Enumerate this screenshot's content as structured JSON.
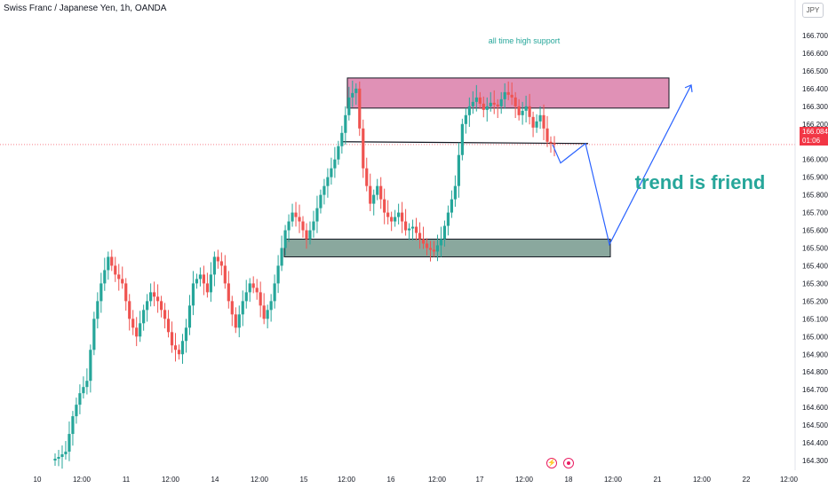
{
  "header": {
    "title": "Swiss Franc / Japanese Yen, 1h, OANDA",
    "currency": "JPY"
  },
  "price_badge": {
    "price": "166.084",
    "countdown": "01:06"
  },
  "annotations": {
    "top_zone_label": "all time high support",
    "trend_label": "trend is friend"
  },
  "colors": {
    "up": "#26a69a",
    "down": "#ef5350",
    "resistance_zone": "#e091b6",
    "support_zone": "#8aa89e",
    "projection": "#2962ff",
    "trend_text": "#26a69a",
    "price_line": "#f23645",
    "event_icon": "#e91e63"
  },
  "icons": [
    "lightning-event-icon",
    "record-event-icon"
  ],
  "chart_data": {
    "type": "candlestick",
    "title": "Swiss Franc / Japanese Yen, 1h, OANDA",
    "y_axis": {
      "unit": "JPY",
      "range": [
        164.25,
        166.75
      ],
      "ticks": [
        "166.700",
        "166.600",
        "166.500",
        "166.400",
        "166.300",
        "166.200",
        "166.000",
        "165.900",
        "165.800",
        "165.700",
        "165.600",
        "165.500",
        "165.400",
        "165.300",
        "165.200",
        "165.100",
        "165.000",
        "164.900",
        "164.800",
        "164.700",
        "164.600",
        "164.500",
        "164.400",
        "164.300"
      ]
    },
    "x_axis": {
      "ticks": [
        "10",
        "12:00",
        "11",
        "12:00",
        "14",
        "12:00",
        "15",
        "12:00",
        "16",
        "12:00",
        "17",
        "12:00",
        "18",
        "12:00",
        "21",
        "12:00",
        "22",
        "12:00"
      ]
    },
    "last_price": 166.084,
    "zones": [
      {
        "name": "resistance",
        "low": 166.29,
        "high": 166.46
      },
      {
        "name": "support",
        "low": 165.45,
        "high": 165.55
      }
    ],
    "horizontal_line": 166.1,
    "projection_path_prices": [
      166.084,
      165.98,
      166.09,
      165.52,
      166.42
    ],
    "ohlc_path": [
      164.32,
      164.35,
      164.55,
      164.68,
      164.75,
      165.1,
      165.3,
      165.45,
      165.35,
      165.3,
      165.1,
      165.0,
      165.15,
      165.25,
      165.2,
      165.1,
      164.95,
      164.9,
      165.05,
      165.3,
      165.35,
      165.25,
      165.45,
      165.4,
      165.2,
      165.05,
      165.2,
      165.3,
      165.25,
      165.1,
      165.2,
      165.4,
      165.6,
      165.7,
      165.65,
      165.55,
      165.65,
      165.8,
      165.9,
      166.0,
      166.15,
      166.35,
      166.4,
      165.95,
      165.75,
      165.85,
      165.7,
      165.65,
      165.7,
      165.6,
      165.62,
      165.55,
      165.5,
      165.48,
      165.55,
      165.7,
      165.85,
      166.2,
      166.3,
      166.35,
      166.28,
      166.32,
      166.3,
      166.38,
      166.35,
      166.25,
      166.3,
      166.18,
      166.25,
      166.1,
      166.084
    ]
  }
}
